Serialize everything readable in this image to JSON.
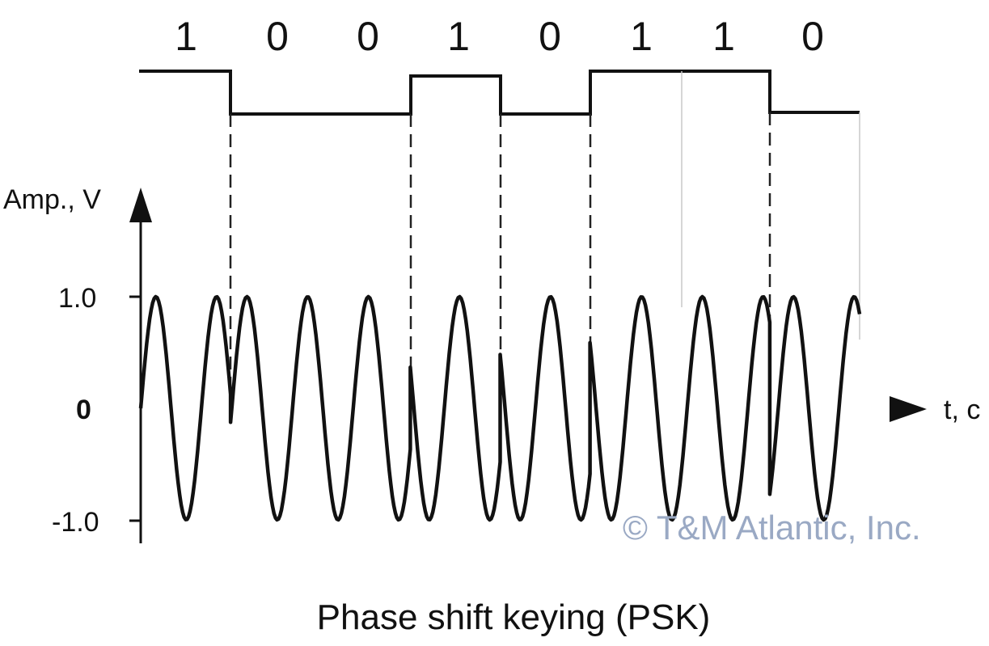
{
  "bits": [
    "1",
    "0",
    "0",
    "1",
    "0",
    "1",
    "1",
    "0"
  ],
  "y_axis": {
    "label": "Amp., V",
    "tick_top": "1.0",
    "tick_zero": "0",
    "tick_bottom": "-1.0"
  },
  "x_axis": {
    "label": "t, c"
  },
  "watermark": "© T&M Atlantic, Inc.",
  "caption": "Phase shift keying (PSK)",
  "colors": {
    "ink": "#111111",
    "watermark": "#9aa9c4"
  }
}
